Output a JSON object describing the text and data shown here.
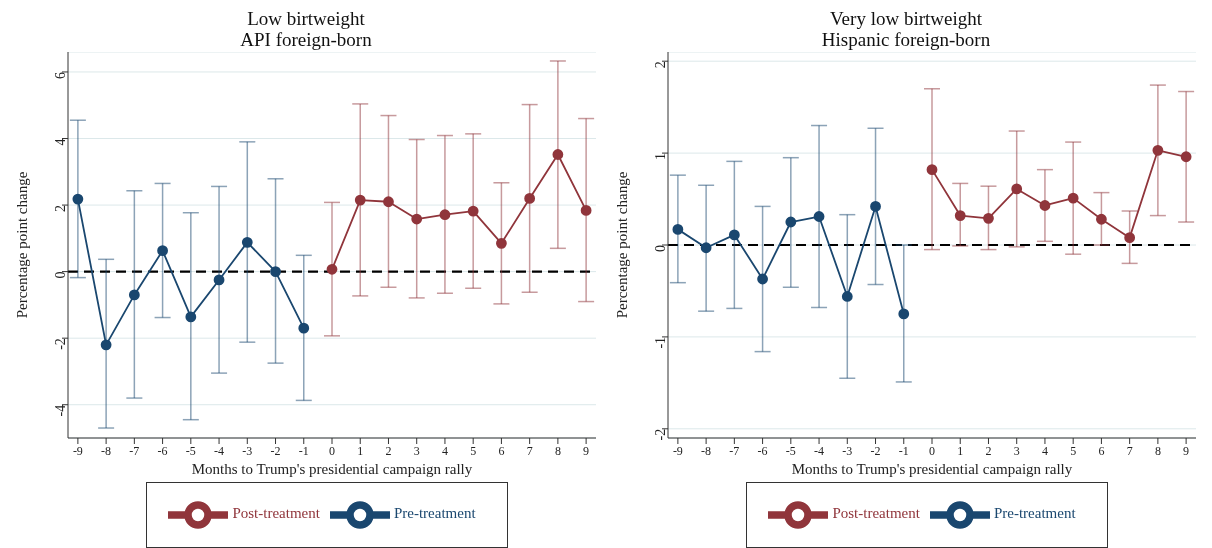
{
  "chart_data": [
    {
      "type": "line",
      "title": "Low birtweight",
      "subtitle": "API foreign-born",
      "xlabel": "Months to Trump's presidential campaign rally",
      "ylabel": "Percentage point change",
      "xlim": [
        -9.35,
        9.35
      ],
      "xticks": [
        -9,
        -8,
        -7,
        -6,
        -5,
        -4,
        -3,
        -2,
        -1,
        0,
        1,
        2,
        3,
        4,
        5,
        6,
        7,
        8,
        9
      ],
      "ylim": [
        -5,
        6.6
      ],
      "yticks": [
        -4,
        -2,
        0,
        2,
        4,
        6
      ],
      "grid": "y",
      "legend": "bottom",
      "marker": "circle",
      "line_style": "solid",
      "ref_lines": [
        {
          "axis": "y",
          "value": 0,
          "label": null,
          "color": "#000000",
          "line_style": "dashed"
        }
      ],
      "series": [
        {
          "name": "Pre-treatment",
          "color": "#1a476f",
          "x": [
            -9,
            -8,
            -7,
            -6,
            -5,
            -4,
            -3,
            -2,
            -1
          ],
          "values": [
            2.18,
            -2.2,
            -0.7,
            0.63,
            -1.36,
            -0.25,
            0.88,
            0.0,
            -1.7
          ],
          "errors": [
            [
              -0.18,
              4.55
            ],
            [
              -4.7,
              0.37
            ],
            [
              -3.8,
              2.43
            ],
            [
              -1.38,
              2.65
            ],
            [
              -4.45,
              1.77
            ],
            [
              -3.05,
              2.56
            ],
            [
              -2.12,
              3.9
            ],
            [
              -2.75,
              2.79
            ],
            [
              -3.87,
              0.49
            ]
          ]
        },
        {
          "name": "Post-treatment",
          "color": "#90353b",
          "x": [
            0,
            1,
            2,
            3,
            4,
            5,
            6,
            7,
            8,
            9
          ],
          "values": [
            0.07,
            2.15,
            2.1,
            1.58,
            1.71,
            1.82,
            0.85,
            2.2,
            3.52,
            1.84
          ],
          "errors": [
            [
              -1.93,
              2.08
            ],
            [
              -0.73,
              5.04
            ],
            [
              -0.47,
              4.69
            ],
            [
              -0.79,
              3.97
            ],
            [
              -0.65,
              4.09
            ],
            [
              -0.5,
              4.14
            ],
            [
              -0.97,
              2.67
            ],
            [
              -0.62,
              5.02
            ],
            [
              0.7,
              6.33
            ],
            [
              -0.9,
              4.6
            ]
          ]
        }
      ]
    },
    {
      "type": "line",
      "title": "Very low birtweight",
      "subtitle": "Hispanic foreign-born",
      "xlabel": "Months to Trump's presidential campaign rally",
      "ylabel": "Percentage point change",
      "xlim": [
        -9.35,
        9.35
      ],
      "xticks": [
        -9,
        -8,
        -7,
        -6,
        -5,
        -4,
        -3,
        -2,
        -1,
        0,
        1,
        2,
        3,
        4,
        5,
        6,
        7,
        8,
        9
      ],
      "ylim": [
        -2.1,
        2.1
      ],
      "yticks": [
        -2,
        -1,
        0,
        1,
        2
      ],
      "grid": "y",
      "legend": "bottom",
      "marker": "circle",
      "line_style": "solid",
      "ref_lines": [
        {
          "axis": "y",
          "value": 0,
          "label": null,
          "color": "#000000",
          "line_style": "dashed"
        }
      ],
      "series": [
        {
          "name": "Pre-treatment",
          "color": "#1a476f",
          "x": [
            -9,
            -8,
            -7,
            -6,
            -5,
            -4,
            -3,
            -2,
            -1
          ],
          "values": [
            0.17,
            -0.03,
            0.11,
            -0.37,
            0.25,
            0.31,
            -0.56,
            0.42,
            -0.75
          ],
          "errors": [
            [
              -0.41,
              0.76
            ],
            [
              -0.72,
              0.65
            ],
            [
              -0.69,
              0.91
            ],
            [
              -1.16,
              0.42
            ],
            [
              -0.46,
              0.95
            ],
            [
              -0.68,
              1.3
            ],
            [
              -1.45,
              0.33
            ],
            [
              -0.43,
              1.27
            ],
            [
              -1.49,
              0.0
            ]
          ]
        },
        {
          "name": "Post-treatment",
          "color": "#90353b",
          "x": [
            0,
            1,
            2,
            3,
            4,
            5,
            6,
            7,
            8,
            9
          ],
          "values": [
            0.82,
            0.32,
            0.29,
            0.61,
            0.43,
            0.51,
            0.28,
            0.08,
            1.03,
            0.96
          ],
          "errors": [
            [
              -0.05,
              1.7
            ],
            [
              -0.01,
              0.67
            ],
            [
              -0.05,
              0.64
            ],
            [
              -0.02,
              1.24
            ],
            [
              0.04,
              0.82
            ],
            [
              -0.1,
              1.12
            ],
            [
              0,
              0.57
            ],
            [
              -0.2,
              0.37
            ],
            [
              0.32,
              1.74
            ],
            [
              0.25,
              1.67
            ]
          ]
        }
      ]
    }
  ]
}
